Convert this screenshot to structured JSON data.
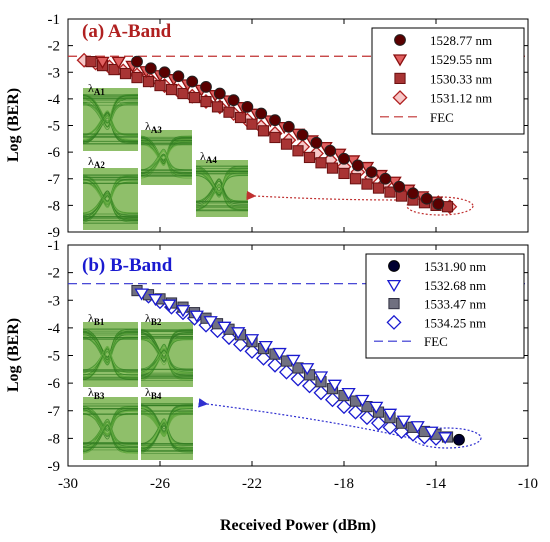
{
  "chart_data": [
    {
      "type": "scatter",
      "panel_label": "(a) A-Band",
      "title_color": "#b02020",
      "xlabel": "Received Power (dBm)",
      "ylabel": "Log (BER)",
      "xlim": [
        -30,
        -10
      ],
      "ylim": [
        -9,
        -1
      ],
      "xticks": [
        "-30",
        "-26",
        "-22",
        "-18",
        "-14",
        "-10"
      ],
      "yticks": [
        "-1",
        "-2",
        "-3",
        "-4",
        "-5",
        "-6",
        "-7",
        "-8",
        "-9"
      ],
      "legend_position": "top-right",
      "fec_label": "FEC",
      "fec_value": -2.4,
      "fec_color": "#c03030",
      "series": [
        {
          "name": "1528.77 nm",
          "marker": "circle",
          "fill": "#5a0000",
          "stroke": "#222",
          "x": [
            -27.0,
            -26.4,
            -25.8,
            -25.2,
            -24.6,
            -24.0,
            -23.4,
            -22.8,
            -22.2,
            -21.6,
            -21.0,
            -20.4,
            -19.8,
            -19.2,
            -18.6,
            -18.0,
            -17.4,
            -16.8,
            -16.2,
            -15.6,
            -15.0,
            -14.4,
            -13.9
          ],
          "y": [
            -2.6,
            -2.85,
            -3.0,
            -3.15,
            -3.35,
            -3.55,
            -3.8,
            -4.05,
            -4.3,
            -4.55,
            -4.8,
            -5.05,
            -5.35,
            -5.65,
            -5.95,
            -6.25,
            -6.5,
            -6.75,
            -7.0,
            -7.3,
            -7.55,
            -7.75,
            -7.95
          ]
        },
        {
          "name": "1529.55 nm",
          "marker": "triangle-down",
          "fill": "#e06060",
          "stroke": "#8a1010",
          "x": [
            -28.5,
            -27.8,
            -27.2,
            -26.6,
            -26.0,
            -25.4,
            -24.8,
            -24.2,
            -23.6,
            -23.0,
            -22.4,
            -21.8,
            -21.2,
            -20.6,
            -20.0,
            -19.4,
            -18.8,
            -18.2,
            -17.6,
            -17.0,
            -16.4,
            -15.8,
            -15.2,
            -14.6,
            -14.0
          ],
          "y": [
            -2.6,
            -2.6,
            -2.75,
            -2.95,
            -3.1,
            -3.25,
            -3.45,
            -3.65,
            -3.85,
            -4.05,
            -4.3,
            -4.55,
            -4.8,
            -5.05,
            -5.3,
            -5.55,
            -5.8,
            -6.05,
            -6.3,
            -6.55,
            -6.85,
            -7.1,
            -7.4,
            -7.65,
            -7.85
          ]
        },
        {
          "name": "1530.33 nm",
          "marker": "square",
          "fill": "#a83434",
          "stroke": "#6a1010",
          "x": [
            -29.0,
            -28.5,
            -28.0,
            -27.5,
            -27.0,
            -26.5,
            -26.0,
            -25.5,
            -25.0,
            -24.5,
            -24.0,
            -23.5,
            -23.0,
            -22.5,
            -22.0,
            -21.5,
            -21.0,
            -20.5,
            -20.0,
            -19.5,
            -19.0,
            -18.5,
            -18.0,
            -17.5,
            -17.0,
            -16.5,
            -16.0,
            -15.5,
            -15.0,
            -14.5,
            -14.0,
            -13.5
          ],
          "y": [
            -2.6,
            -2.75,
            -2.9,
            -3.05,
            -3.2,
            -3.35,
            -3.5,
            -3.65,
            -3.8,
            -3.95,
            -4.1,
            -4.3,
            -4.5,
            -4.7,
            -4.95,
            -5.2,
            -5.45,
            -5.7,
            -5.95,
            -6.2,
            -6.4,
            -6.6,
            -6.8,
            -7.0,
            -7.2,
            -7.35,
            -7.5,
            -7.65,
            -7.8,
            -7.9,
            -8.0,
            -8.05
          ]
        },
        {
          "name": "1531.12 nm",
          "marker": "diamond",
          "fill": "#f7c8c8",
          "stroke": "#b02020",
          "x": [
            -29.3,
            -28.8,
            -28.2,
            -27.6,
            -27.0,
            -26.4,
            -25.8,
            -25.2,
            -24.6,
            -24.0,
            -23.4,
            -22.8,
            -22.2,
            -21.6,
            -21.0,
            -20.4,
            -19.8,
            -19.2,
            -18.6,
            -18.0,
            -17.4,
            -16.8,
            -16.2,
            -15.6,
            -15.0,
            -14.4,
            -13.9,
            -13.4
          ],
          "y": [
            -2.55,
            -2.65,
            -2.8,
            -2.95,
            -3.1,
            -3.3,
            -3.5,
            -3.7,
            -3.9,
            -4.1,
            -4.3,
            -4.55,
            -4.8,
            -5.05,
            -5.3,
            -5.55,
            -5.8,
            -6.05,
            -6.3,
            -6.55,
            -6.75,
            -6.95,
            -7.15,
            -7.35,
            -7.55,
            -7.75,
            -7.9,
            -8.05
          ]
        }
      ],
      "eye_labels": [
        {
          "base": "λ",
          "sub": "A1"
        },
        {
          "base": "λ",
          "sub": "A2"
        },
        {
          "base": "λ",
          "sub": "A3"
        },
        {
          "base": "λ",
          "sub": "A4"
        }
      ],
      "arrow_color": "#c03030"
    },
    {
      "type": "scatter",
      "panel_label": "(b) B-Band",
      "title_color": "#1a1ad0",
      "xlabel": "Received Power (dBm)",
      "ylabel": "Log (BER)",
      "xlim": [
        -30,
        -10
      ],
      "ylim": [
        -9,
        -1
      ],
      "xticks": [
        "-30",
        "-26",
        "-22",
        "-18",
        "-14",
        "-10"
      ],
      "yticks": [
        "-1",
        "-2",
        "-3",
        "-4",
        "-5",
        "-6",
        "-7",
        "-8",
        "-9"
      ],
      "legend_position": "top-right",
      "fec_label": "FEC",
      "fec_value": -2.4,
      "fec_color": "#3030d0",
      "series": [
        {
          "name": "1531.90 nm",
          "marker": "circle",
          "fill": "#000030",
          "stroke": "#000",
          "x": [
            -13.0
          ],
          "y": [
            -8.05
          ]
        },
        {
          "name": "1532.68 nm",
          "marker": "triangle-down",
          "fill": "#ffffff",
          "stroke": "#1a1ad0",
          "x": [
            -26.8,
            -26.2,
            -25.6,
            -25.0,
            -24.4,
            -23.8,
            -23.2,
            -22.6,
            -22.0,
            -21.4,
            -20.8,
            -20.2,
            -19.6,
            -19.0,
            -18.4,
            -17.8,
            -17.2,
            -16.6,
            -16.0,
            -15.4,
            -14.8,
            -14.2,
            -13.6
          ],
          "y": [
            -2.75,
            -2.95,
            -3.15,
            -3.35,
            -3.55,
            -3.75,
            -3.95,
            -4.15,
            -4.4,
            -4.65,
            -4.9,
            -5.15,
            -5.45,
            -5.75,
            -6.05,
            -6.35,
            -6.6,
            -6.85,
            -7.1,
            -7.35,
            -7.55,
            -7.75,
            -7.95
          ]
        },
        {
          "name": "1533.47 nm",
          "marker": "square",
          "fill": "#707080",
          "stroke": "#303040",
          "x": [
            -27.0,
            -26.5,
            -26.0,
            -25.5,
            -25.0,
            -24.5,
            -24.0,
            -23.5,
            -23.0,
            -22.5,
            -22.0,
            -21.5,
            -21.0,
            -20.5,
            -20.0,
            -19.5,
            -19.0,
            -18.5,
            -18.0,
            -17.5,
            -17.0,
            -16.5,
            -16.0,
            -15.5,
            -15.0,
            -14.5,
            -14.0,
            -13.5
          ],
          "y": [
            -2.65,
            -2.8,
            -2.95,
            -3.1,
            -3.25,
            -3.45,
            -3.65,
            -3.85,
            -4.05,
            -4.25,
            -4.5,
            -4.75,
            -4.95,
            -5.2,
            -5.45,
            -5.7,
            -5.95,
            -6.2,
            -6.45,
            -6.65,
            -6.85,
            -7.05,
            -7.25,
            -7.45,
            -7.6,
            -7.75,
            -7.85,
            -7.95
          ]
        },
        {
          "name": "1534.25 nm",
          "marker": "diamond",
          "fill": "#ffffff",
          "stroke": "#1a1ad0",
          "x": [
            -26.5,
            -26.0,
            -25.5,
            -25.0,
            -24.5,
            -24.0,
            -23.5,
            -23.0,
            -22.5,
            -22.0,
            -21.5,
            -21.0,
            -20.5,
            -20.0,
            -19.5,
            -19.0,
            -18.5,
            -18.0,
            -17.5,
            -17.0,
            -16.5,
            -16.0,
            -15.5,
            -15.0,
            -14.5,
            -14.0
          ],
          "y": [
            -2.85,
            -3.05,
            -3.25,
            -3.45,
            -3.65,
            -3.9,
            -4.1,
            -4.35,
            -4.6,
            -4.85,
            -5.1,
            -5.35,
            -5.6,
            -5.85,
            -6.1,
            -6.35,
            -6.6,
            -6.85,
            -7.05,
            -7.25,
            -7.45,
            -7.6,
            -7.75,
            -7.85,
            -7.95,
            -8.0
          ]
        }
      ],
      "eye_labels": [
        {
          "base": "λ",
          "sub": "B1"
        },
        {
          "base": "λ",
          "sub": "B2"
        },
        {
          "base": "λ",
          "sub": "B3"
        },
        {
          "base": "λ",
          "sub": "B4"
        }
      ],
      "arrow_color": "#3030d0"
    }
  ]
}
